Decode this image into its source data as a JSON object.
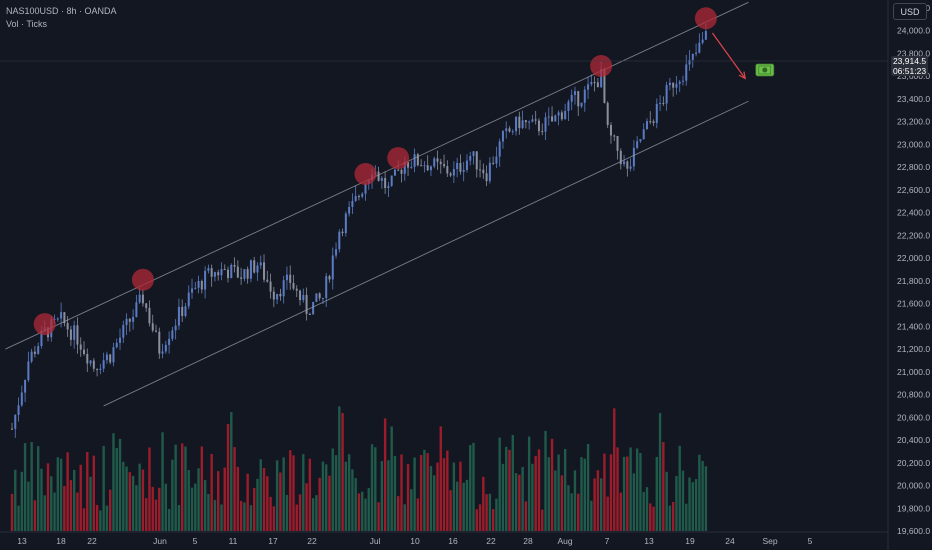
{
  "legend": {
    "symbol_line": "NAS100USD · 8h · OANDA",
    "volume_line": "Vol · Ticks"
  },
  "currency_button": "USD",
  "last_price": {
    "value": "23,914.5",
    "countdown": "06:51:23"
  },
  "colors": {
    "background": "#131722",
    "bull": "#5b7cc4",
    "bear": "#8a8f9e",
    "volume_up": "#1f5a4a",
    "volume_down": "#9b1d2c",
    "channel": "#9aa0ab",
    "marker": "#b02a37",
    "arrow": "#e0444c"
  },
  "chart_data": {
    "type": "candlestick",
    "y_axis": {
      "min": 19600,
      "max": 24200,
      "ticks": [
        "24,200.0",
        "24,000.0",
        "23,800.0",
        "23,600.0",
        "23,400.0",
        "23,200.0",
        "23,000.0",
        "22,800.0",
        "22,600.0",
        "22,400.0",
        "22,200.0",
        "22,000.0",
        "21,800.0",
        "21,600.0",
        "21,400.0",
        "21,200.0",
        "21,000.0",
        "20,800.0",
        "20,600.0",
        "20,400.0",
        "20,200.0",
        "20,000.0",
        "19,800.0",
        "19,600.0"
      ]
    },
    "x_axis": {
      "ticks": [
        "13",
        "18",
        "22",
        "Jun",
        "5",
        "11",
        "17",
        "22",
        "Jul",
        "10",
        "16",
        "22",
        "28",
        "Aug",
        "7",
        "13",
        "19",
        "24",
        "Sep",
        "5"
      ]
    },
    "price_path": [
      {
        "x": 0,
        "y": 20500
      },
      {
        "x": 5,
        "y": 21100
      },
      {
        "x": 10,
        "y": 21350
      },
      {
        "x": 15,
        "y": 21450
      },
      {
        "x": 20,
        "y": 21300
      },
      {
        "x": 25,
        "y": 21050
      },
      {
        "x": 30,
        "y": 21150
      },
      {
        "x": 35,
        "y": 21400
      },
      {
        "x": 40,
        "y": 21650
      },
      {
        "x": 45,
        "y": 21200
      },
      {
        "x": 50,
        "y": 21450
      },
      {
        "x": 55,
        "y": 21700
      },
      {
        "x": 60,
        "y": 21850
      },
      {
        "x": 65,
        "y": 21900
      },
      {
        "x": 70,
        "y": 21850
      },
      {
        "x": 75,
        "y": 21950
      },
      {
        "x": 80,
        "y": 21700
      },
      {
        "x": 85,
        "y": 21800
      },
      {
        "x": 90,
        "y": 21550
      },
      {
        "x": 95,
        "y": 21650
      },
      {
        "x": 100,
        "y": 22250
      },
      {
        "x": 105,
        "y": 22500
      },
      {
        "x": 110,
        "y": 22800
      },
      {
        "x": 115,
        "y": 22600
      },
      {
        "x": 120,
        "y": 22850
      },
      {
        "x": 125,
        "y": 22850
      },
      {
        "x": 130,
        "y": 22800
      },
      {
        "x": 135,
        "y": 22750
      },
      {
        "x": 140,
        "y": 22900
      },
      {
        "x": 145,
        "y": 22750
      },
      {
        "x": 150,
        "y": 23050
      },
      {
        "x": 155,
        "y": 23200
      },
      {
        "x": 160,
        "y": 23150
      },
      {
        "x": 165,
        "y": 23200
      },
      {
        "x": 170,
        "y": 23350
      },
      {
        "x": 175,
        "y": 23450
      },
      {
        "x": 180,
        "y": 23600
      },
      {
        "x": 182,
        "y": 23100
      },
      {
        "x": 185,
        "y": 22950
      },
      {
        "x": 188,
        "y": 22750
      },
      {
        "x": 192,
        "y": 23050
      },
      {
        "x": 197,
        "y": 23300
      },
      {
        "x": 202,
        "y": 23550
      },
      {
        "x": 207,
        "y": 23700
      },
      {
        "x": 212,
        "y": 23950
      }
    ],
    "channel": {
      "upper": [
        {
          "x": -2,
          "y": 21200
        },
        {
          "x": 225,
          "y": 24250
        }
      ],
      "lower": [
        {
          "x": 28,
          "y": 20700
        },
        {
          "x": 225,
          "y": 23380
        }
      ]
    },
    "touch_markers": [
      {
        "x": 10,
        "y": 21420
      },
      {
        "x": 40,
        "y": 21810
      },
      {
        "x": 108,
        "y": 22740
      },
      {
        "x": 118,
        "y": 22880
      },
      {
        "x": 180,
        "y": 23690
      },
      {
        "x": 212,
        "y": 24110
      }
    ],
    "arrow": {
      "from": {
        "x": 214,
        "y": 23980
      },
      "to": {
        "x": 224,
        "y": 23580
      }
    },
    "money_icon": {
      "x": 230,
      "y": 23655
    },
    "x_domain": [
      0,
      260
    ]
  }
}
